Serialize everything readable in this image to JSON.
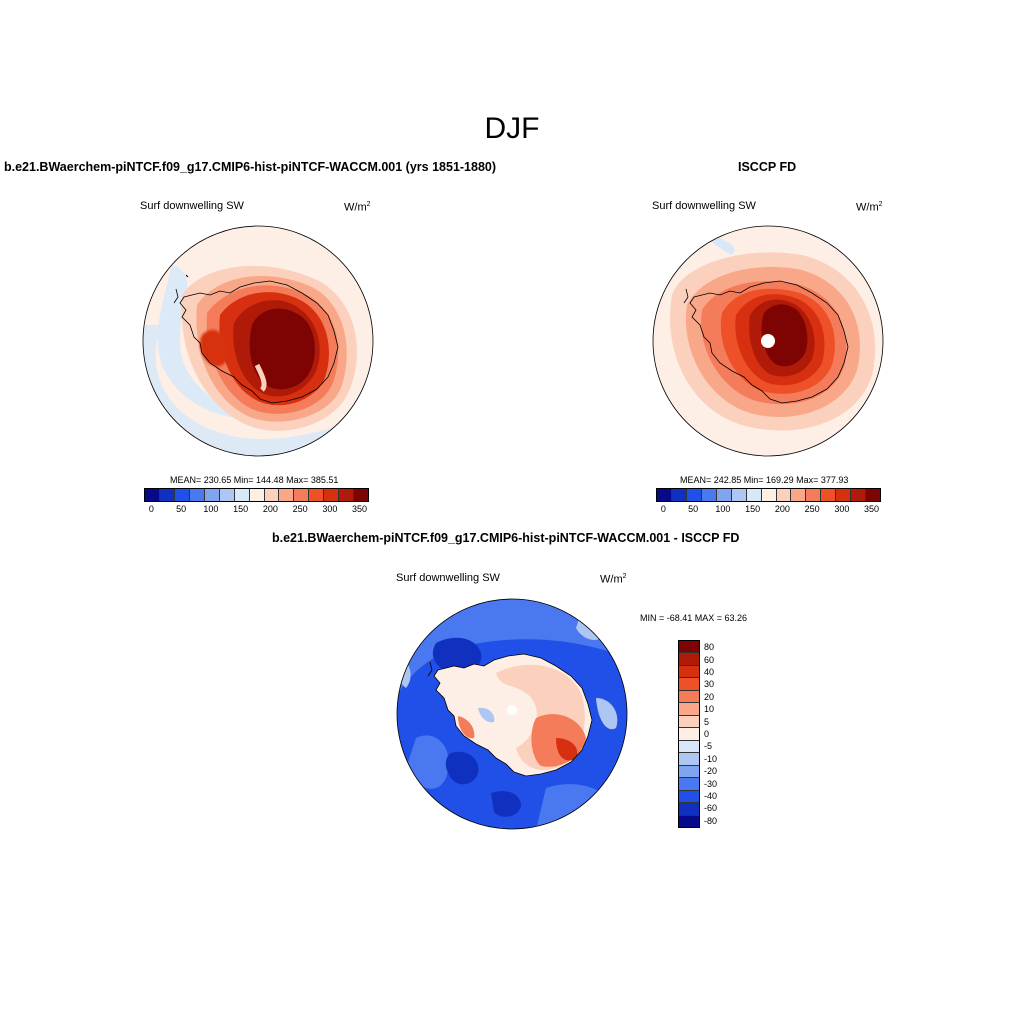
{
  "season": "DJF",
  "panels": {
    "model": {
      "title": "b.e21.BWaerchem-piNTCF.f09_g17.CMIP6-hist-piNTCF-WACCM.001 (yrs 1851-1880)",
      "field": "Surf downwelling SW",
      "units": "W/m",
      "units_sup": "2",
      "stats": "MEAN= 230.65  Min= 144.48  Max= 385.51",
      "stats_values": {
        "mean": 230.65,
        "min": 144.48,
        "max": 385.51
      }
    },
    "obs": {
      "title": "ISCCP FD",
      "field": "Surf downwelling SW",
      "units": "W/m",
      "units_sup": "2",
      "stats": "MEAN= 242.85  Min= 169.29  Max= 377.93",
      "stats_values": {
        "mean": 242.85,
        "min": 169.29,
        "max": 377.93
      }
    },
    "diff": {
      "title": "b.e21.BWaerchem-piNTCF.f09_g17.CMIP6-hist-piNTCF-WACCM.001 - ISCCP FD",
      "field": "Surf downwelling SW",
      "units": "W/m",
      "units_sup": "2",
      "stats": "MIN = -68.41 MAX =  63.26",
      "stats_values": {
        "min": -68.41,
        "max": 63.26
      }
    }
  },
  "abs_colorbar": {
    "colors": [
      "#08088a",
      "#1030c0",
      "#2050e8",
      "#4a78f0",
      "#7fa4f0",
      "#aec6f2",
      "#d8e8f8",
      "#fdeee6",
      "#fbd0bc",
      "#f8a888",
      "#f47c5a",
      "#ee5028",
      "#d73010",
      "#b01a08",
      "#7e0303"
    ],
    "tick_labels": [
      "0",
      "50",
      "100",
      "150",
      "200",
      "250",
      "300",
      "350"
    ],
    "tick_values": [
      0,
      50,
      100,
      150,
      200,
      250,
      300,
      350
    ]
  },
  "diff_colorbar": {
    "colors": [
      "#7e0303",
      "#b01a08",
      "#d73010",
      "#ee5028",
      "#f47c5a",
      "#f8a888",
      "#fbd0bc",
      "#fdeee6",
      "#d8e8f8",
      "#aec6f2",
      "#7fa4f0",
      "#4a78f0",
      "#2050e8",
      "#1030c0",
      "#08088a"
    ],
    "tick_labels": [
      "80",
      "60",
      "40",
      "30",
      "20",
      "10",
      "5",
      "0",
      "-5",
      "-10",
      "-20",
      "-30",
      "-40",
      "-60",
      "-80"
    ],
    "tick_values": [
      80,
      60,
      40,
      30,
      20,
      10,
      5,
      0,
      -5,
      -10,
      -20,
      -30,
      -40,
      -60,
      -80
    ]
  }
}
